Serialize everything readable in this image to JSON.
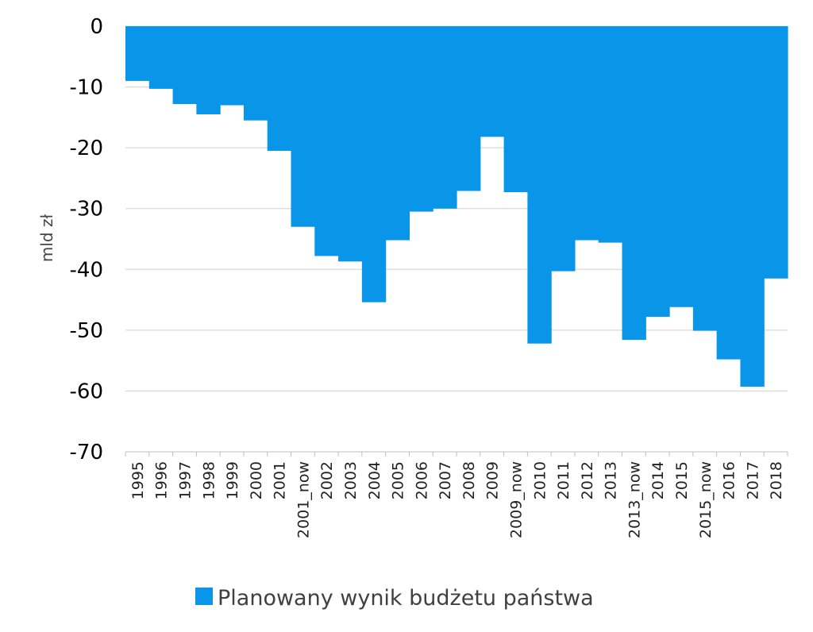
{
  "chart_data": {
    "type": "area",
    "step": true,
    "categories": [
      "1995",
      "1996",
      "1997",
      "1998",
      "1999",
      "2000",
      "2001",
      "2001_now",
      "2002",
      "2003",
      "2004",
      "2005",
      "2006",
      "2007",
      "2008",
      "2009",
      "2009_now",
      "2010",
      "2011",
      "2012",
      "2013",
      "2013_now",
      "2014",
      "2015",
      "2015_now",
      "2016",
      "2017",
      "2018"
    ],
    "series": [
      {
        "name": "Planowany wynik budżetu państwa",
        "color": "#0a96e8",
        "values": [
          -9,
          -10.3,
          -12.8,
          -14.5,
          -13,
          -15.5,
          -20.5,
          -33,
          -37.8,
          -38.7,
          -45.4,
          -35.2,
          -30.5,
          -30,
          -27.1,
          -18.2,
          -27.3,
          -52.2,
          -40.3,
          -35.2,
          -35.6,
          -51.6,
          -47.8,
          -46.2,
          -50.1,
          -54.8,
          -59.3,
          -41.5
        ]
      }
    ],
    "ylabel": "mld zł",
    "ylim": [
      -70,
      0
    ],
    "yticks": [
      0,
      -10,
      -20,
      -30,
      -40,
      -50,
      -60,
      -70
    ],
    "grid": true,
    "legend": "bottom"
  }
}
